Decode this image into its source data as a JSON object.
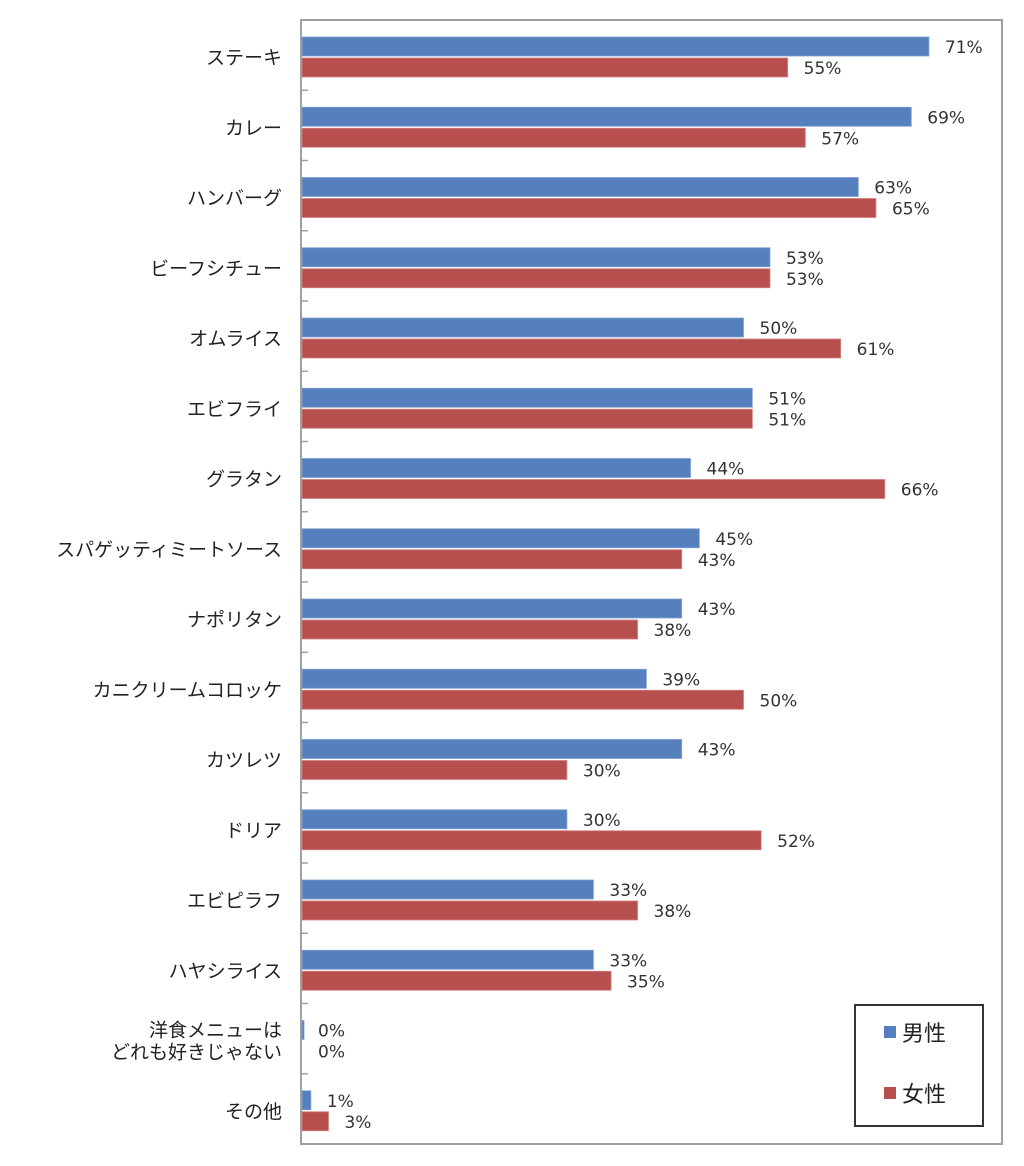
{
  "chart_data": {
    "type": "bar",
    "orientation": "horizontal",
    "title": "",
    "xlabel": "",
    "ylabel": "",
    "xlim": [
      0,
      80
    ],
    "grid": false,
    "legend_position": "bottom-right",
    "categories": [
      "ステーキ",
      "カレー",
      "ハンバーグ",
      "ビーフシチュー",
      "オムライス",
      "エビフライ",
      "グラタン",
      "スパゲッティミートソース",
      "ナポリタン",
      "カニクリームコロッケ",
      "カツレツ",
      "ドリア",
      "エビピラフ",
      "ハヤシライス",
      "洋食メニューは\nどれも好きじゃない",
      "その他"
    ],
    "category_lines": [
      [
        "ステーキ"
      ],
      [
        "カレー"
      ],
      [
        "ハンバーグ"
      ],
      [
        "ビーフシチュー"
      ],
      [
        "オムライス"
      ],
      [
        "エビフライ"
      ],
      [
        "グラタン"
      ],
      [
        "スパゲッティミートソース"
      ],
      [
        "ナポリタン"
      ],
      [
        "カニクリームコロッケ"
      ],
      [
        "カツレツ"
      ],
      [
        "ドリア"
      ],
      [
        "エビピラフ"
      ],
      [
        "ハヤシライス"
      ],
      [
        "洋食メニューは",
        "どれも好きじゃない"
      ],
      [
        "その他"
      ]
    ],
    "series": [
      {
        "name": "男性",
        "color": "#5580bd",
        "values": [
          71,
          69,
          63,
          53,
          50,
          51,
          44,
          45,
          43,
          39,
          43,
          30,
          33,
          33,
          0,
          1
        ],
        "labels": [
          "71%",
          "69%",
          "63%",
          "53%",
          "50%",
          "51%",
          "44%",
          "45%",
          "43%",
          "39%",
          "43%",
          "30%",
          "33%",
          "33%",
          "0%",
          "1%"
        ]
      },
      {
        "name": "女性",
        "color": "#b84f4f",
        "values": [
          55,
          57,
          65,
          53,
          61,
          51,
          66,
          43,
          38,
          50,
          30,
          52,
          38,
          35,
          0,
          3
        ],
        "labels": [
          "55%",
          "57%",
          "65%",
          "53%",
          "61%",
          "51%",
          "66%",
          "43%",
          "38%",
          "50%",
          "30%",
          "52%",
          "38%",
          "35%",
          "0%",
          "3%"
        ]
      }
    ]
  }
}
